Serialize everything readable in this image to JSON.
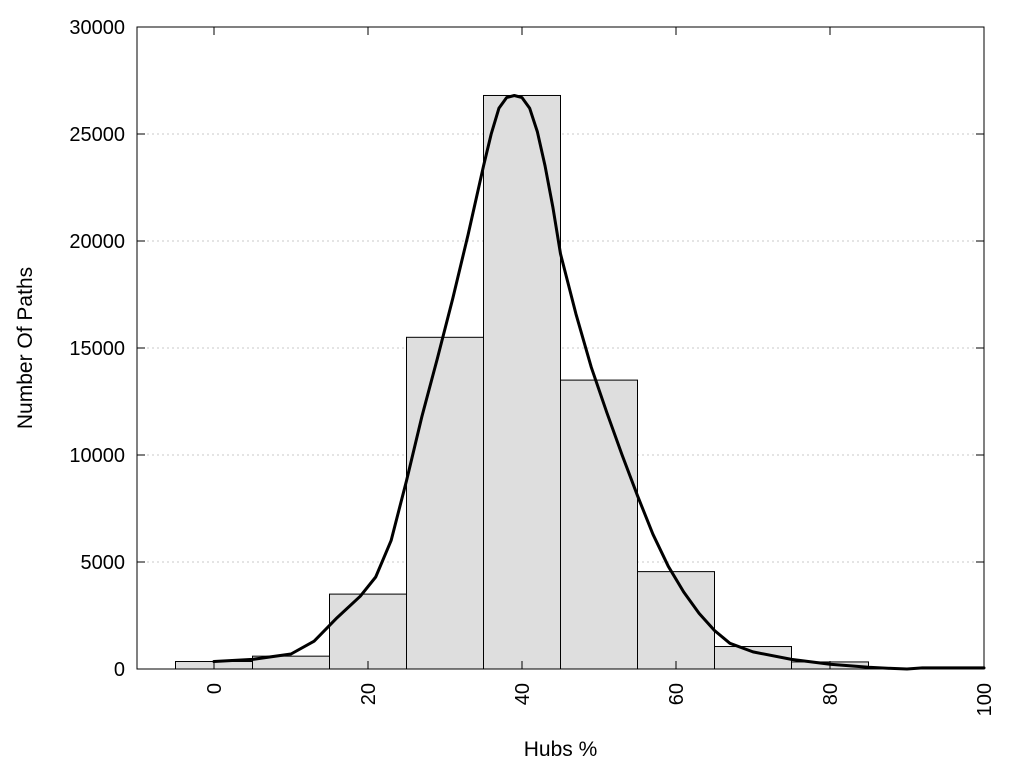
{
  "chart_data": {
    "type": "bar",
    "xlabel": "Hubs %",
    "ylabel": "Number Of Paths",
    "xlim": [
      -10,
      100
    ],
    "ylim": [
      0,
      30000
    ],
    "xticks": [
      0,
      20,
      40,
      60,
      80,
      100
    ],
    "yticks": [
      0,
      5000,
      10000,
      15000,
      20000,
      25000,
      30000
    ],
    "grid": true,
    "bar_color": "#dedede",
    "bins": [
      {
        "start": -5,
        "end": 5,
        "value": 350
      },
      {
        "start": 5,
        "end": 15,
        "value": 600
      },
      {
        "start": 15,
        "end": 25,
        "value": 3500
      },
      {
        "start": 25,
        "end": 35,
        "value": 15500
      },
      {
        "start": 35,
        "end": 45,
        "value": 26800
      },
      {
        "start": 45,
        "end": 55,
        "value": 13500
      },
      {
        "start": 55,
        "end": 65,
        "value": 4550
      },
      {
        "start": 65,
        "end": 75,
        "value": 1050
      },
      {
        "start": 75,
        "end": 85,
        "value": 330
      },
      {
        "start": 85,
        "end": 95,
        "value": 0
      }
    ],
    "curve": {
      "color": "#000000",
      "x": [
        0,
        5,
        10,
        13,
        16,
        19,
        21,
        23,
        25,
        27,
        29,
        31,
        33,
        35,
        36,
        37,
        38,
        39,
        40,
        41,
        42,
        43,
        44,
        45,
        47,
        49,
        51,
        53,
        55,
        57,
        59,
        61,
        63,
        65,
        67,
        70,
        75,
        80,
        85,
        88,
        90,
        92,
        95,
        100
      ],
      "y": [
        350,
        450,
        700,
        1300,
        2400,
        3400,
        4300,
        6000,
        8800,
        11800,
        14500,
        17300,
        20300,
        23500,
        25000,
        26200,
        26700,
        26800,
        26700,
        26200,
        25100,
        23500,
        21600,
        19400,
        16600,
        14100,
        12000,
        10000,
        8100,
        6300,
        4800,
        3600,
        2600,
        1800,
        1200,
        800,
        450,
        220,
        80,
        30,
        0,
        50,
        50,
        50
      ]
    }
  }
}
